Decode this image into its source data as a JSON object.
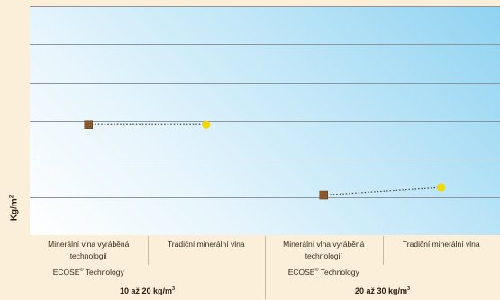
{
  "chart_data": {
    "type": "scatter",
    "title": "",
    "ylabel": "Kg/m",
    "ylabel_sup": "2",
    "grid": true,
    "legend": "none",
    "ylim": [
      0,
      6
    ],
    "yticks": [
      1,
      2,
      3,
      4,
      5,
      6
    ],
    "categories": [
      {
        "lines": [
          "Minerální vlna vyráběná",
          "technologií"
        ],
        "brand": "ECOSE",
        "brand_sup": "®",
        "brand_suffix": " Technology",
        "group": 0
      },
      {
        "lines": [
          "Tradiční minerální vlna"
        ],
        "group": 0
      },
      {
        "lines": [
          "Minerální vlna vyráběná",
          "technologií"
        ],
        "brand": "ECOSE",
        "brand_sup": "®",
        "brand_suffix": " Technology",
        "group": 1
      },
      {
        "lines": [
          "Tradiční minerální vlna"
        ],
        "group": 1
      }
    ],
    "groups": [
      {
        "label": "10 až 20 kg/m",
        "sup": "3"
      },
      {
        "label": "20 až 30 kg/m",
        "sup": "3"
      }
    ],
    "points": [
      {
        "category": 0,
        "value": 2.9,
        "marker": "square",
        "color": "#8a5a2b"
      },
      {
        "category": 1,
        "value": 2.9,
        "marker": "circle",
        "color": "#f5d800"
      },
      {
        "category": 2,
        "value": 1.05,
        "marker": "square",
        "color": "#8a5a2b"
      },
      {
        "category": 3,
        "value": 1.25,
        "marker": "circle",
        "color": "#f5d800"
      }
    ],
    "connectors": [
      [
        0,
        1
      ],
      [
        2,
        3
      ]
    ],
    "colors": {
      "gridline": "#8a96a0",
      "connector": "#444444",
      "ecose_marker": "#8a5a2b",
      "traditional_marker": "#f5d800"
    }
  }
}
